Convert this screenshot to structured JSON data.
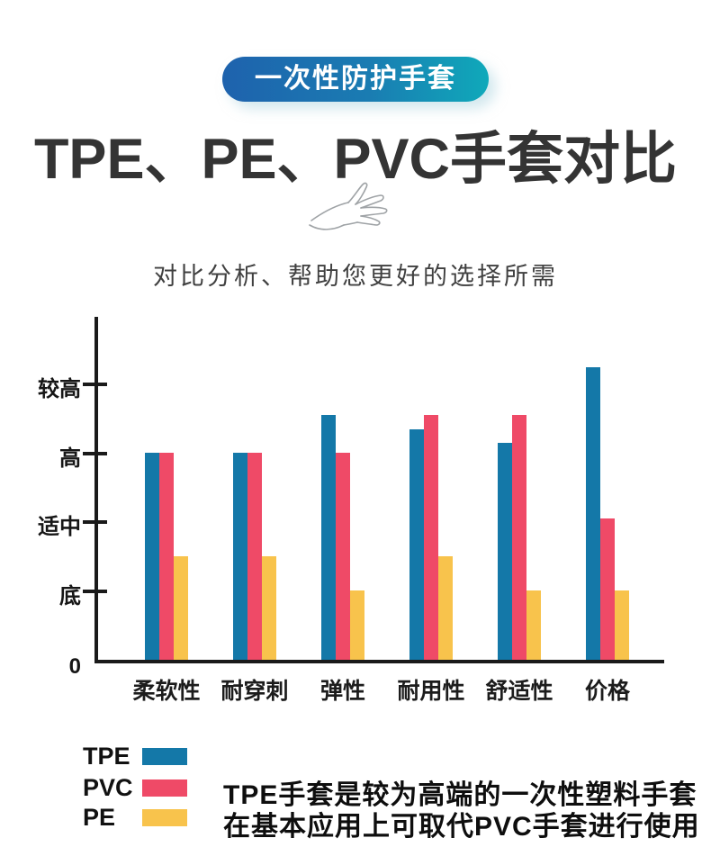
{
  "badge": {
    "label": "一次性防护手套"
  },
  "title": {
    "text": "TPE、PE、PVC手套对比"
  },
  "subtitle": {
    "text": "对比分析、帮助您更好的选择所需"
  },
  "chart_data": {
    "type": "bar",
    "title": "",
    "xlabel": "",
    "ylabel": "",
    "categories": [
      "柔软性",
      "耐穿刺",
      "弹性",
      "耐用性",
      "舒适性",
      "价格"
    ],
    "y_tick_labels": [
      "0",
      "底",
      "适中",
      "高",
      "较高"
    ],
    "y_tick_values": [
      0,
      1,
      2,
      3,
      4
    ],
    "ylim": [
      0,
      5
    ],
    "grid": false,
    "legend_position": "bottom-left",
    "series": [
      {
        "name": "TPE",
        "color": "#1478a8",
        "values": [
          3.0,
          3.0,
          3.55,
          3.35,
          3.15,
          4.25
        ]
      },
      {
        "name": "PVC",
        "color": "#ef4a67",
        "values": [
          3.0,
          3.0,
          3.0,
          3.55,
          3.55,
          2.05
        ]
      },
      {
        "name": "PE",
        "color": "#f8c34c",
        "values": [
          1.5,
          1.5,
          1.0,
          1.5,
          1.0,
          1.0
        ]
      }
    ]
  },
  "legend": {
    "items": [
      {
        "label": "TPE",
        "color": "#1478a8"
      },
      {
        "label": "PVC",
        "color": "#ef4a67"
      },
      {
        "label": "PE",
        "color": "#f8c34c"
      }
    ]
  },
  "description": {
    "line1": "TPE手套是较为高端的一次性塑料手套",
    "line2": "在基本应用上可取代PVC手套进行使用"
  }
}
